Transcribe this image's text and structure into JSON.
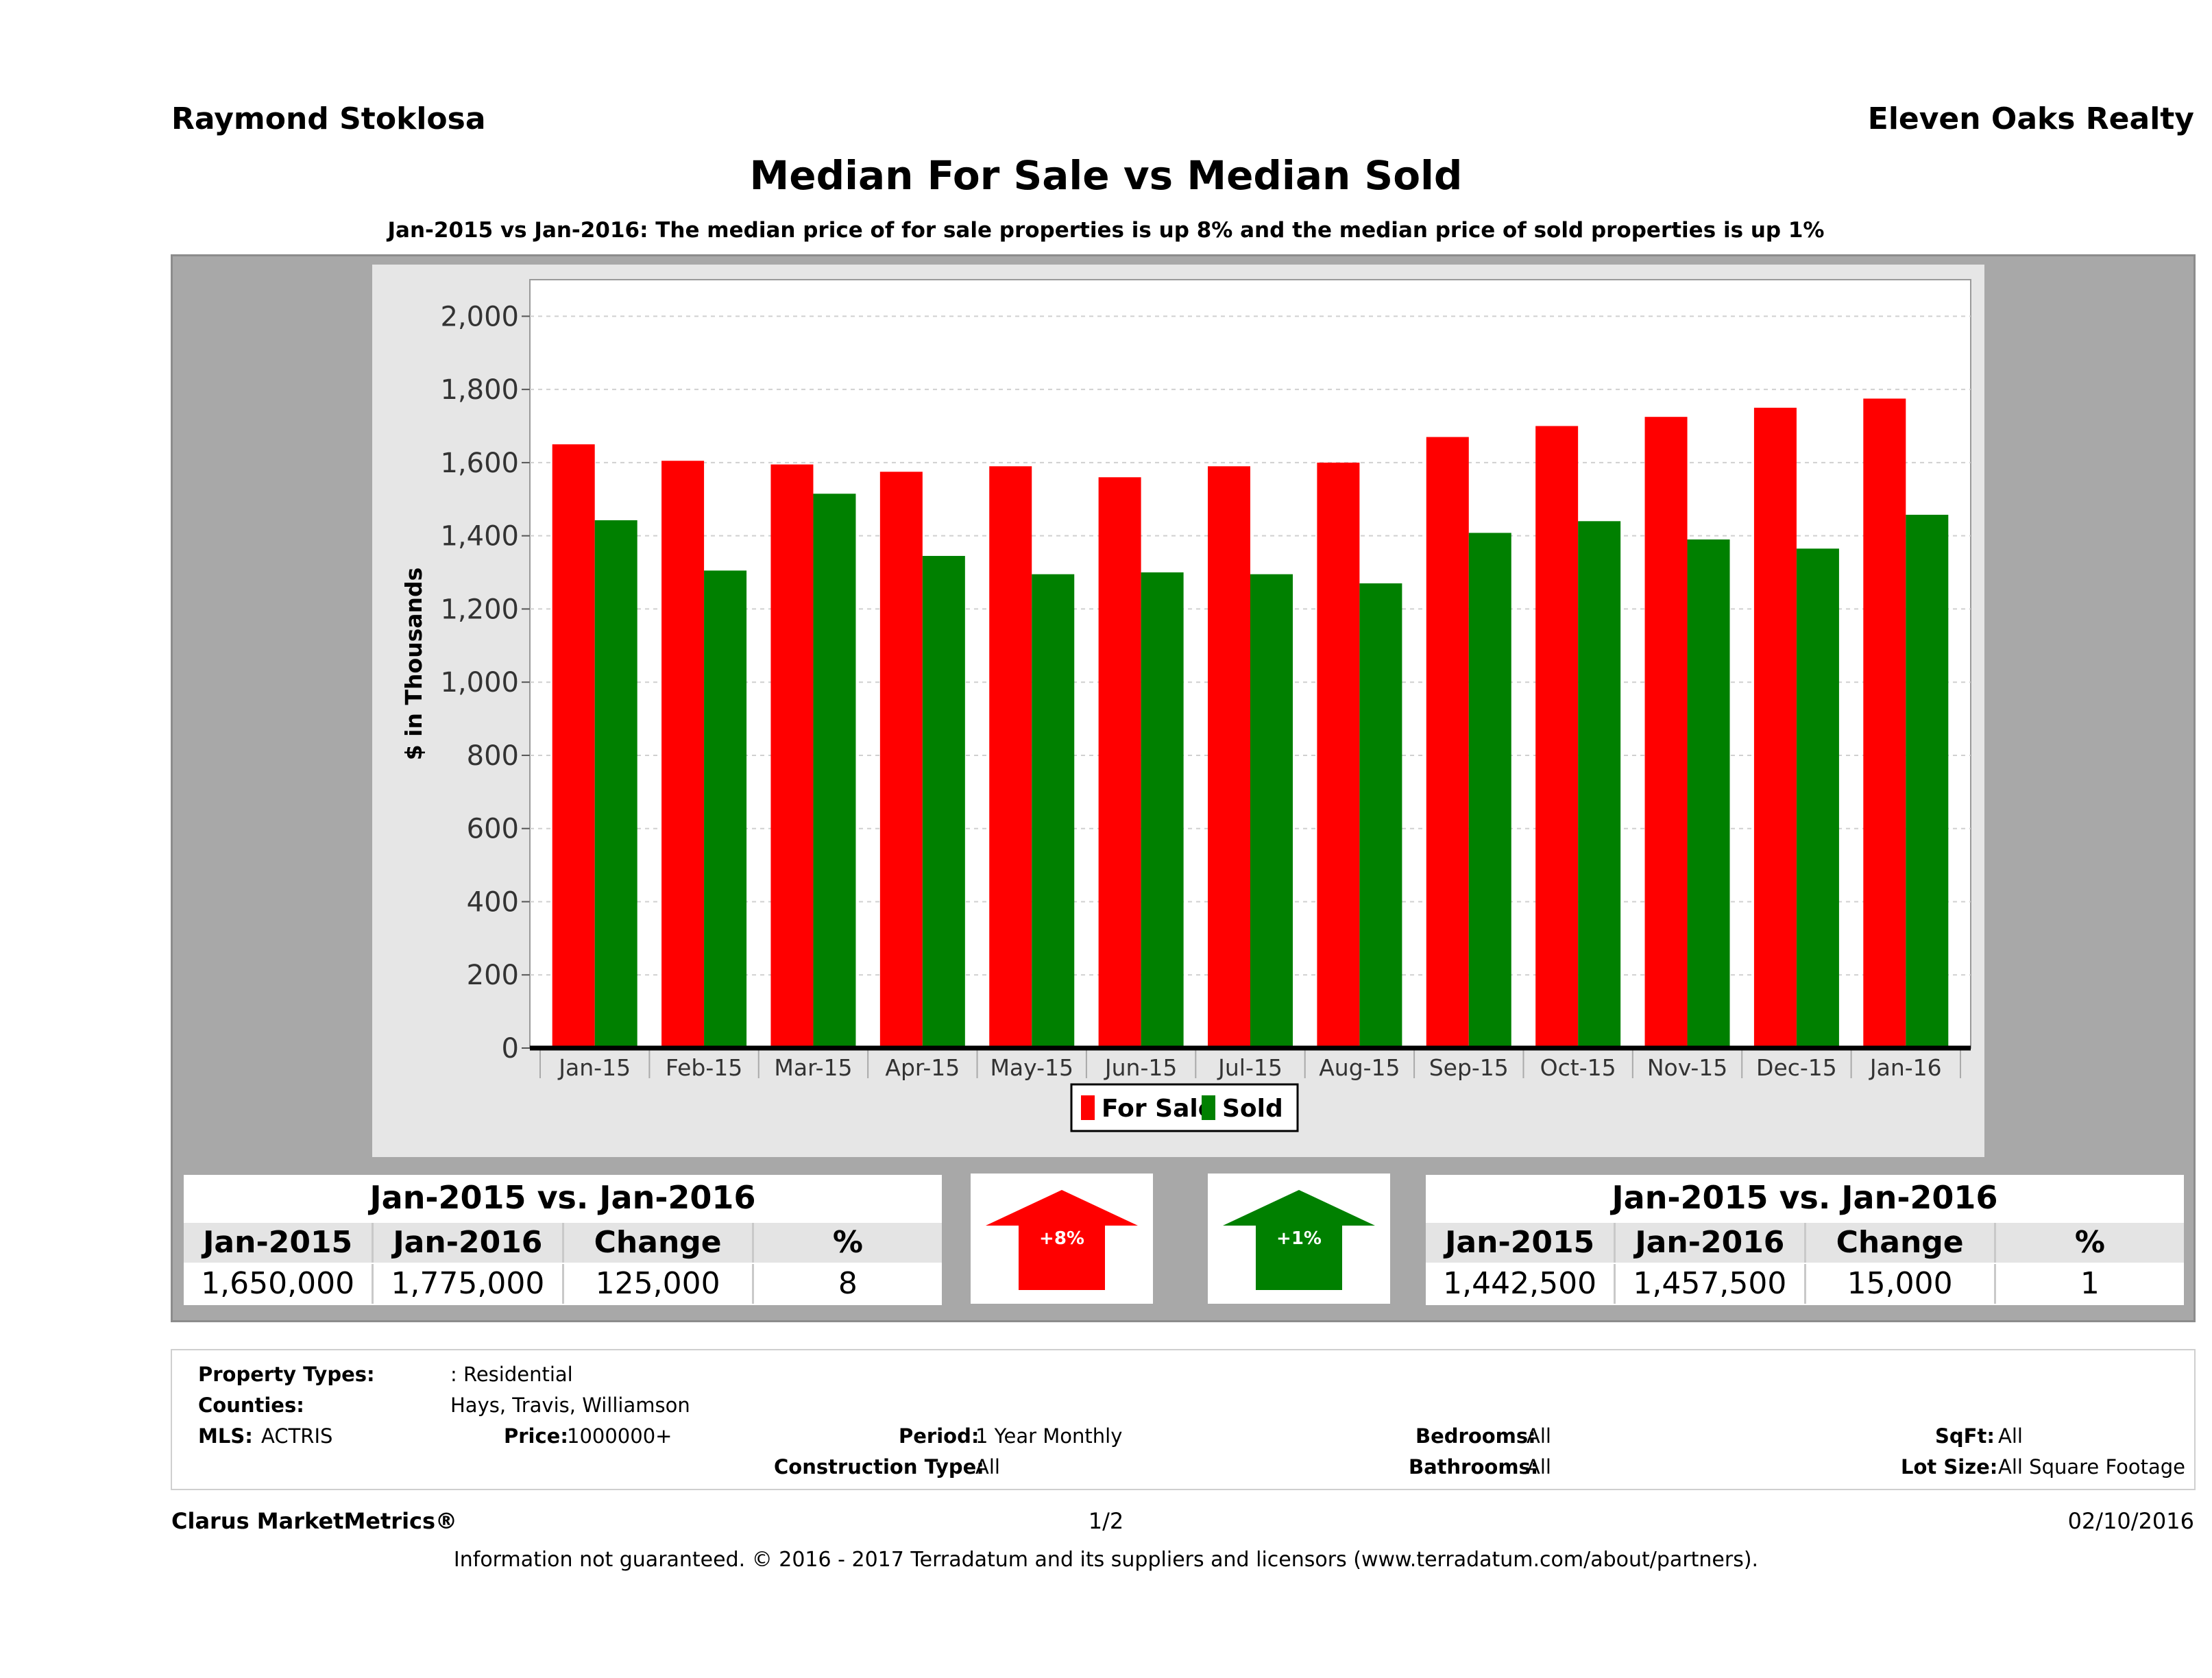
{
  "header": {
    "agent_name": "Raymond Stoklosa",
    "company": "Eleven Oaks Realty"
  },
  "chart_data": {
    "type": "bar",
    "title": "Median For Sale vs Median Sold",
    "subtitle": "Jan-2015 vs Jan-2016: The median price of for sale properties is up 8% and the median price of sold properties is up 1%",
    "ylabel": "$ in Thousands",
    "xlabel": "",
    "ylim": [
      0,
      2100
    ],
    "yticks": [
      0,
      200,
      400,
      600,
      800,
      1000,
      1200,
      1400,
      1600,
      1800,
      2000
    ],
    "ytick_labels": [
      "0",
      "200",
      "400",
      "600",
      "800",
      "1,000",
      "1,200",
      "1,400",
      "1,600",
      "1,800",
      "2,000"
    ],
    "grid": true,
    "legend_position": "bottom-center",
    "categories": [
      "Jan-15",
      "Feb-15",
      "Mar-15",
      "Apr-15",
      "May-15",
      "Jun-15",
      "Jul-15",
      "Aug-15",
      "Sep-15",
      "Oct-15",
      "Nov-15",
      "Dec-15",
      "Jan-16"
    ],
    "series": [
      {
        "name": "For Sale",
        "color": "#ff0000",
        "values": [
          1650,
          1605,
          1595,
          1575,
          1590,
          1560,
          1590,
          1600,
          1670,
          1700,
          1725,
          1750,
          1775
        ]
      },
      {
        "name": "Sold",
        "color": "#008000",
        "values": [
          1442.5,
          1305,
          1515,
          1345,
          1295,
          1300,
          1295,
          1270,
          1408,
          1440,
          1390,
          1365,
          1457.5
        ]
      }
    ]
  },
  "summary_left": {
    "title": "Jan-2015 vs. Jan-2016",
    "headers": [
      "Jan-2015",
      "Jan-2016",
      "Change",
      "%"
    ],
    "values": [
      "1,650,000",
      "1,775,000",
      "125,000",
      "8"
    ]
  },
  "summary_right": {
    "title": "Jan-2015 vs. Jan-2016",
    "headers": [
      "Jan-2015",
      "Jan-2016",
      "Change",
      "%"
    ],
    "values": [
      "1,442,500",
      "1,457,500",
      "15,000",
      "1"
    ]
  },
  "arrows": {
    "for_sale": {
      "label": "+8%",
      "color": "#ff0000",
      "icon": "up-arrow-icon"
    },
    "sold": {
      "label": "+1%",
      "color": "#008000",
      "icon": "up-arrow-icon"
    }
  },
  "criteria": {
    "property_types_label": "Property Types:",
    "property_types_value": ": Residential",
    "counties_label": "Counties:",
    "counties_value": "Hays, Travis, Williamson",
    "mls_label": "MLS:",
    "mls_value": "ACTRIS",
    "price_label": "Price:",
    "price_value": "1000000+",
    "period_label": "Period:",
    "period_value": "1 Year Monthly",
    "construction_label": "Construction Type:",
    "construction_value": "All",
    "bedrooms_label": "Bedrooms:",
    "bedrooms_value": "All",
    "bathrooms_label": "Bathrooms:",
    "bathrooms_value": "All",
    "sqft_label": "SqFt:",
    "sqft_value": "All",
    "lot_size_label": "Lot Size:",
    "lot_size_value": "All Square Footage"
  },
  "footer": {
    "brand": "Clarus MarketMetrics®",
    "page": "1/2",
    "date": "02/10/2016",
    "disclaimer": "Information not guaranteed. © 2016 - 2017 Terradatum and its suppliers and licensors (www.terradatum.com/about/partners)."
  }
}
